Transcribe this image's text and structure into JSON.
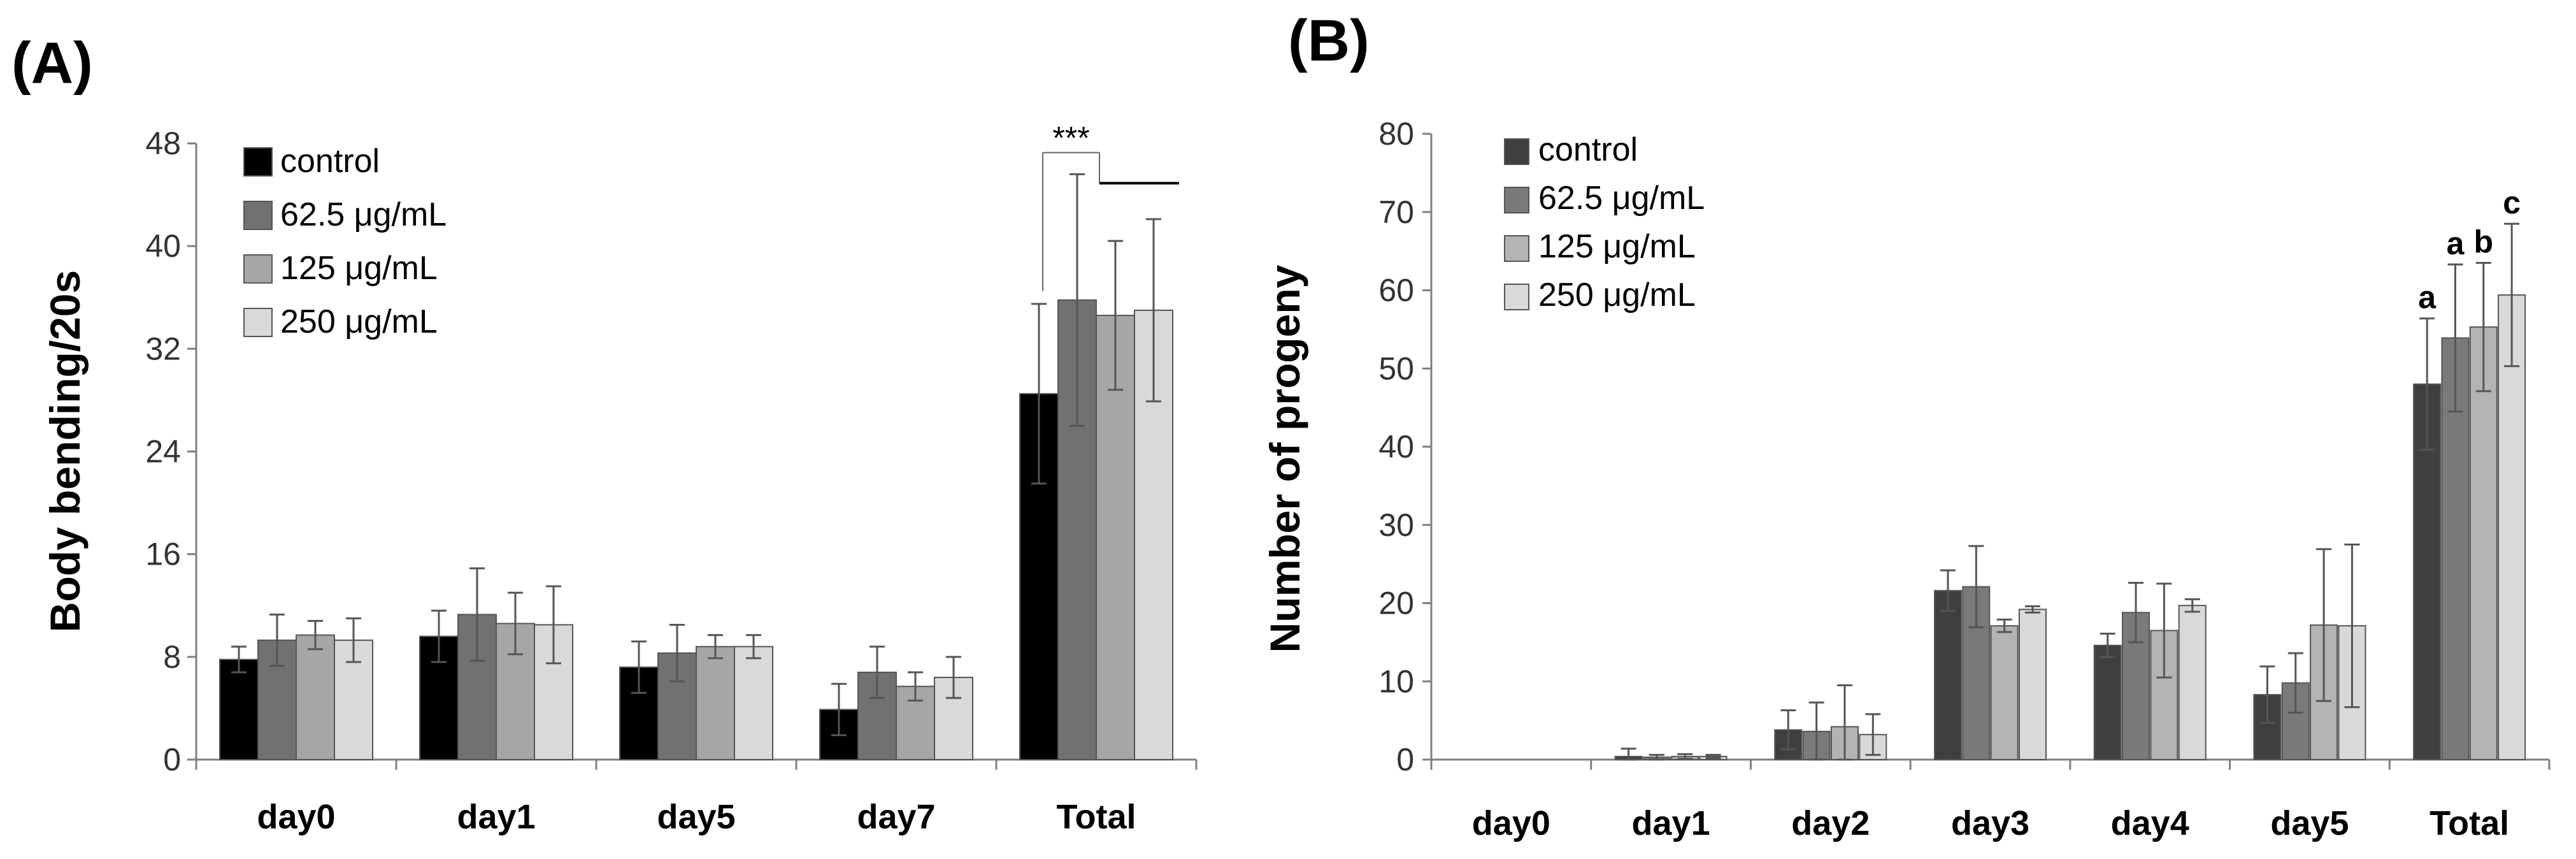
{
  "chart_data": [
    {
      "panel": "(A)",
      "type": "bar",
      "ylabel": "Body bending/20s",
      "xlabel": "",
      "ylim": [
        0,
        48
      ],
      "yticks": [
        "0",
        "8",
        "16",
        "24",
        "32",
        "40",
        "48"
      ],
      "grid": false,
      "legend_position": "top-left",
      "categories": [
        "day0",
        "day1",
        "day5",
        "day7",
        "Total"
      ],
      "series": [
        {
          "name": "control",
          "color": "#000000",
          "values": [
            7.8,
            9.6,
            7.2,
            3.9,
            28.5
          ],
          "errors": [
            1.0,
            2.0,
            2.0,
            2.0,
            7.0
          ]
        },
        {
          "name": "62.5 μg/mL",
          "color": "#717171",
          "values": [
            9.3,
            11.3,
            8.3,
            6.8,
            35.8
          ],
          "errors": [
            2.0,
            3.6,
            2.2,
            2.0,
            9.8
          ]
        },
        {
          "name": "125 μg/mL",
          "color": "#a6a6a6",
          "values": [
            9.7,
            10.6,
            8.8,
            5.7,
            34.6
          ],
          "errors": [
            1.1,
            2.4,
            0.9,
            1.1,
            5.8
          ]
        },
        {
          "name": "250 μg/mL",
          "color": "#d9d9d9",
          "values": [
            9.3,
            10.5,
            8.8,
            6.4,
            35.0
          ],
          "errors": [
            1.7,
            3.0,
            0.9,
            1.6,
            7.1
          ]
        }
      ],
      "annotations": [
        {
          "text": "***",
          "between": [
            "control",
            "treatments"
          ],
          "category": "Total"
        }
      ]
    },
    {
      "panel": "(B)",
      "type": "bar",
      "ylabel": "Number of progeny",
      "xlabel": "",
      "ylim": [
        0,
        80
      ],
      "yticks": [
        "0",
        "10",
        "20",
        "30",
        "40",
        "50",
        "60",
        "70",
        "80"
      ],
      "grid": false,
      "legend_position": "top-left",
      "categories": [
        "day0",
        "day1",
        "day2",
        "day3",
        "day4",
        "day5",
        "Total"
      ],
      "series": [
        {
          "name": "control",
          "color": "#3f3f3f",
          "values": [
            0,
            0.4,
            3.8,
            21.6,
            14.6,
            8.3,
            48.0
          ],
          "errors": [
            0,
            1.0,
            2.5,
            2.6,
            1.5,
            3.6,
            8.4
          ]
        },
        {
          "name": "62.5 μg/mL",
          "color": "#7a7a7a",
          "values": [
            0,
            0.3,
            3.6,
            22.1,
            18.8,
            9.8,
            53.9
          ],
          "errors": [
            0,
            0.3,
            3.7,
            5.2,
            3.8,
            3.8,
            9.4
          ]
        },
        {
          "name": "125 μg/mL",
          "color": "#b3b3b3",
          "values": [
            0,
            0.4,
            4.2,
            17.1,
            16.5,
            17.2,
            55.3
          ],
          "errors": [
            0,
            0.3,
            5.3,
            0.8,
            6.0,
            9.7,
            8.2
          ]
        },
        {
          "name": "250 μg/mL",
          "color": "#d9d9d9",
          "values": [
            0,
            0.4,
            3.2,
            19.2,
            19.7,
            17.1,
            59.4
          ],
          "errors": [
            0,
            0.2,
            2.6,
            0.4,
            0.8,
            10.4,
            9.1
          ]
        }
      ],
      "significance_letters": {
        "category": "Total",
        "letters": [
          "a",
          "a",
          "b",
          "c"
        ]
      }
    }
  ]
}
